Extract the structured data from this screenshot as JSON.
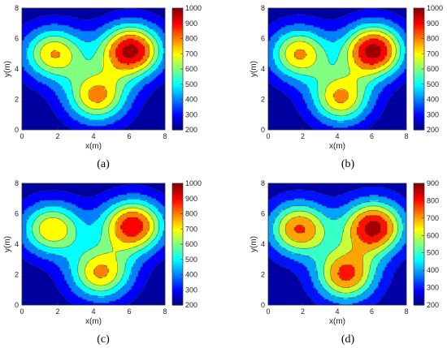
{
  "chart_data": [
    {
      "type": "heatmap",
      "panel_label": "(a)",
      "xlabel": "x(m)",
      "ylabel": "y(m)",
      "xlim": [
        0,
        8
      ],
      "ylim": [
        0,
        8
      ],
      "xticks": [
        0,
        2,
        4,
        6,
        8
      ],
      "yticks": [
        0,
        2,
        4,
        6,
        8
      ],
      "colorbar": {
        "min": 200,
        "max": 1000,
        "ticks": [
          200,
          300,
          400,
          500,
          600,
          700,
          800,
          900,
          1000
        ]
      },
      "levels": [
        250,
        350,
        450,
        550,
        650,
        750,
        850,
        950
      ],
      "sources": [
        {
          "x": 1.8,
          "y": 5.0,
          "peak": 750
        },
        {
          "x": 6.1,
          "y": 5.2,
          "peak": 980
        },
        {
          "x": 4.2,
          "y": 2.2,
          "peak": 770
        }
      ]
    },
    {
      "type": "heatmap",
      "panel_label": "(b)",
      "xlabel": "x(m)",
      "ylabel": "y(m)",
      "xlim": [
        0,
        8
      ],
      "ylim": [
        0,
        8
      ],
      "xticks": [
        0,
        2,
        4,
        6,
        8
      ],
      "yticks": [
        0,
        2,
        4,
        6,
        8
      ],
      "colorbar": {
        "min": 200,
        "max": 1000,
        "ticks": [
          200,
          300,
          400,
          500,
          600,
          700,
          800,
          900,
          1000
        ]
      },
      "levels": [
        250,
        350,
        450,
        550,
        650,
        750,
        850,
        950
      ],
      "sources": [
        {
          "x": 1.8,
          "y": 5.0,
          "peak": 760
        },
        {
          "x": 6.1,
          "y": 5.2,
          "peak": 990
        },
        {
          "x": 4.2,
          "y": 2.1,
          "peak": 760
        }
      ]
    },
    {
      "type": "heatmap",
      "panel_label": "(c)",
      "xlabel": "x(m)",
      "ylabel": "y(m)",
      "xlim": [
        0,
        8
      ],
      "ylim": [
        0,
        8
      ],
      "xticks": [
        0,
        2,
        4,
        6,
        8
      ],
      "yticks": [
        0,
        2,
        4,
        6,
        8
      ],
      "colorbar": {
        "min": 200,
        "max": 1000,
        "ticks": [
          200,
          300,
          400,
          500,
          600,
          700,
          800,
          900,
          1000
        ]
      },
      "levels": [
        250,
        350,
        450,
        550,
        650,
        750,
        850,
        950
      ],
      "sources": [
        {
          "x": 1.7,
          "y": 5.0,
          "peak": 740
        },
        {
          "x": 6.2,
          "y": 5.2,
          "peak": 920
        },
        {
          "x": 4.4,
          "y": 2.1,
          "peak": 760
        }
      ]
    },
    {
      "type": "heatmap",
      "panel_label": "(d)",
      "xlabel": "x(m)",
      "ylabel": "y(m)",
      "xlim": [
        0,
        8
      ],
      "ylim": [
        0,
        8
      ],
      "xticks": [
        0,
        2,
        4,
        6,
        8
      ],
      "yticks": [
        0,
        2,
        4,
        6,
        8
      ],
      "colorbar": {
        "min": 200,
        "max": 900,
        "ticks": [
          200,
          300,
          400,
          500,
          600,
          700,
          800,
          900
        ]
      },
      "levels": [
        250,
        350,
        450,
        550,
        650,
        750,
        850
      ],
      "sources": [
        {
          "x": 1.8,
          "y": 5.0,
          "peak": 760
        },
        {
          "x": 6.1,
          "y": 5.1,
          "peak": 880
        },
        {
          "x": 4.5,
          "y": 2.0,
          "peak": 770
        }
      ]
    }
  ]
}
